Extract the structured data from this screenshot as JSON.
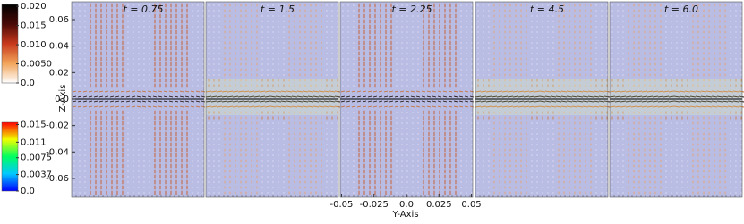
{
  "chart_data": {
    "type": "quiver",
    "panels": [
      "t = 0.75",
      "t = 1.5",
      "t = 2.25",
      "t = 4.5",
      "t = 6.0"
    ],
    "xlabel": "Y-Axis",
    "ylabel": "Z-Axis",
    "xlim": [
      -0.051,
      0.051
    ],
    "xticks": [
      -0.05,
      -0.025,
      {
        "value": 0,
        "label": "0.0"
      },
      0.025,
      0.05
    ],
    "ylim": [
      -0.0742,
      0.0735
    ],
    "yticks": [
      0.06,
      0.04,
      0.02,
      {
        "value": 0,
        "label": "0.0"
      },
      -0.02,
      -0.04,
      -0.06
    ],
    "colorbars": [
      {
        "ylim": [
          0,
          0.0205
        ],
        "yticks": [
          {
            "value": 0.02,
            "label": "0.020"
          },
          {
            "value": 0.015,
            "label": "0.015"
          },
          {
            "value": 0.01,
            "label": "0.010"
          },
          {
            "value": 0.005,
            "label": "0.0050"
          },
          {
            "value": 0,
            "label": "0.0"
          }
        ],
        "colors": [
          "#ffffff",
          "#f2a45a",
          "#c8391c",
          "#4a0a06",
          "#000000"
        ]
      },
      {
        "ylim": [
          0,
          0.0155
        ],
        "yticks": [
          0.015,
          0.011,
          0.0075,
          0.0037,
          {
            "value": 0,
            "label": "0.0"
          }
        ],
        "colors": [
          "#0000ff",
          "#00c8ff",
          "#00ff60",
          "#f0ff00",
          "#ff0000"
        ]
      }
    ]
  }
}
